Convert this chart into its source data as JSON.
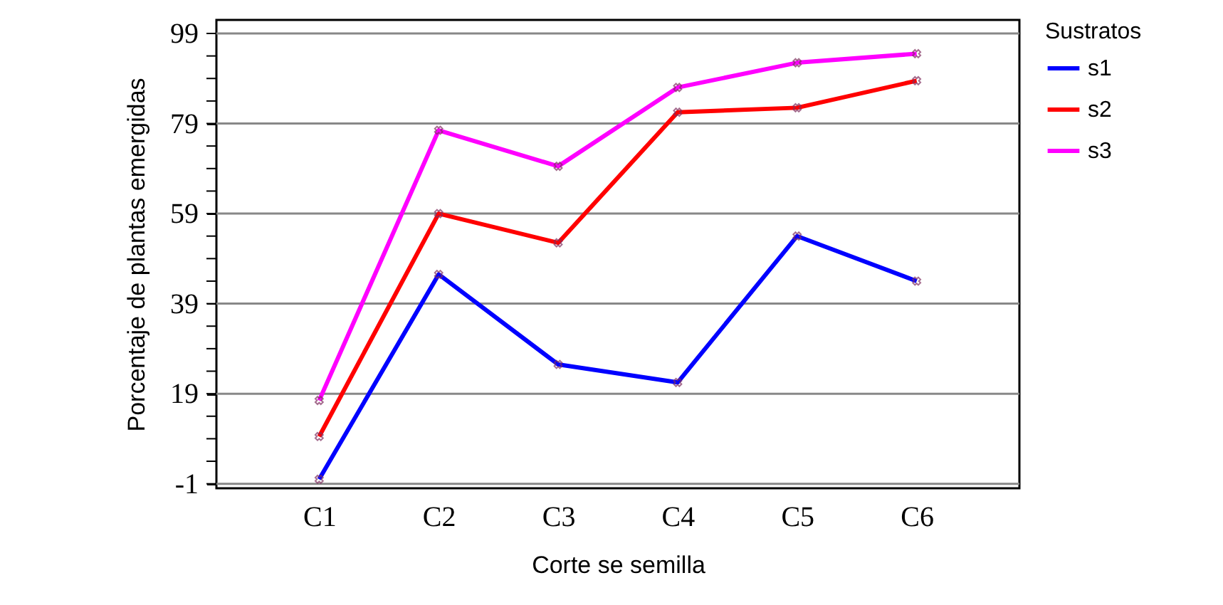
{
  "chart_data": {
    "type": "line",
    "xlabel": "Corte se semilla",
    "ylabel": "Porcentaje de plantas emergidas",
    "legend_title": "Sustratos",
    "categories": [
      "C1",
      "C2",
      "C3",
      "C4",
      "C5",
      "C6"
    ],
    "series": [
      {
        "name": "s1",
        "color": "#0000ff",
        "values": [
          0,
          45.5,
          25.5,
          21.5,
          54,
          44
        ]
      },
      {
        "name": "s2",
        "color": "#ff0000",
        "values": [
          9.5,
          59,
          52.5,
          81.5,
          82.5,
          88.5
        ]
      },
      {
        "name": "s3",
        "color": "#ff00ff",
        "values": [
          17.5,
          77.5,
          69.5,
          87,
          92.5,
          94.5
        ]
      }
    ],
    "ylim": [
      -2,
      102
    ],
    "yticks": [
      -1,
      {
        "value": 4,
        "label": null
      },
      {
        "value": 9,
        "label": null
      },
      {
        "value": 14,
        "label": null
      },
      19,
      {
        "value": 24,
        "label": null
      },
      {
        "value": 29,
        "label": null
      },
      {
        "value": 34,
        "label": null
      },
      39,
      {
        "value": 44,
        "label": null
      },
      {
        "value": 49,
        "label": null
      },
      {
        "value": 54,
        "label": null
      },
      59,
      {
        "value": 64,
        "label": null
      },
      {
        "value": 69,
        "label": null
      },
      {
        "value": 74,
        "label": null
      },
      79,
      {
        "value": 84,
        "label": null
      },
      {
        "value": 89,
        "label": null
      },
      {
        "value": 94,
        "label": null
      },
      99
    ],
    "grid": "y",
    "legend": "top right",
    "marker": "cross",
    "line_style": "solid"
  }
}
